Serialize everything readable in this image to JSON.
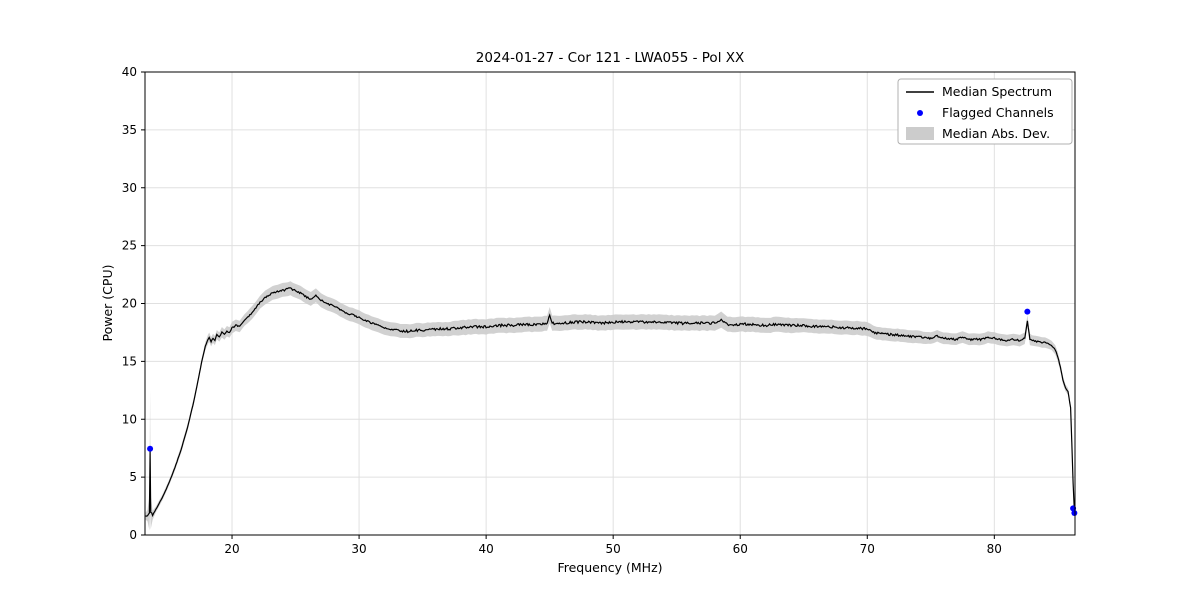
{
  "page": {
    "background": "#ffffff"
  },
  "chart_data": {
    "type": "line",
    "title": "2024-01-27 - Cor 121 - LWA055 - Pol XX",
    "xlabel": "Frequency (MHz)",
    "ylabel": "Power (CPU)",
    "xlim": [
      13.15,
      86.35
    ],
    "ylim": [
      0,
      40
    ],
    "xticks": [
      20,
      30,
      40,
      50,
      60,
      70,
      80
    ],
    "yticks": [
      0,
      5,
      10,
      15,
      20,
      25,
      30,
      35,
      40
    ],
    "grid": true,
    "colors": {
      "median_line": "#000000",
      "flagged_marker": "#0000ff",
      "mad_band": "#cccccc",
      "grid_line": "#e0e0e0",
      "legend_border": "#b0b0b0"
    },
    "legend": {
      "position": "upper right",
      "entries": [
        {
          "label": "Median Spectrum",
          "type": "line",
          "color": "#000000"
        },
        {
          "label": "Flagged Channels",
          "type": "marker",
          "color": "#0000ff"
        },
        {
          "label": "Median Abs. Dev.",
          "type": "patch",
          "color": "#cccccc"
        }
      ]
    },
    "series": [
      {
        "name": "Median Spectrum",
        "note": "points are [frequency_MHz, median_power_CPU, median_abs_dev]",
        "points": [
          [
            13.2,
            1.6,
            0.3
          ],
          [
            13.35,
            1.7,
            0.5
          ],
          [
            13.5,
            1.9,
            1.5
          ],
          [
            13.55,
            7.3,
            5.2
          ],
          [
            13.6,
            2.0,
            1.5
          ],
          [
            13.75,
            1.7,
            0.4
          ],
          [
            14.0,
            2.2,
            0.25
          ],
          [
            14.5,
            3.2,
            0.25
          ],
          [
            15.0,
            4.4,
            0.25
          ],
          [
            15.5,
            5.8,
            0.25
          ],
          [
            16.0,
            7.4,
            0.3
          ],
          [
            16.5,
            9.3,
            0.3
          ],
          [
            17.0,
            11.6,
            0.3
          ],
          [
            17.3,
            13.2,
            0.3
          ],
          [
            17.6,
            14.9,
            0.3
          ],
          [
            17.9,
            16.3,
            0.35
          ],
          [
            18.1,
            16.9,
            0.4
          ],
          [
            18.2,
            17.1,
            0.4
          ],
          [
            18.35,
            16.7,
            0.4
          ],
          [
            18.5,
            17.0,
            0.4
          ],
          [
            18.65,
            16.8,
            0.4
          ],
          [
            18.8,
            17.3,
            0.4
          ],
          [
            19.0,
            17.1,
            0.4
          ],
          [
            19.2,
            17.5,
            0.45
          ],
          [
            19.4,
            17.3,
            0.45
          ],
          [
            19.6,
            17.6,
            0.45
          ],
          [
            19.8,
            17.5,
            0.45
          ],
          [
            20.0,
            17.9,
            0.5
          ],
          [
            20.3,
            18.1,
            0.5
          ],
          [
            20.6,
            18.0,
            0.5
          ],
          [
            21.0,
            18.6,
            0.5
          ],
          [
            21.4,
            19.0,
            0.55
          ],
          [
            21.8,
            19.5,
            0.55
          ],
          [
            22.2,
            20.1,
            0.55
          ],
          [
            22.6,
            20.5,
            0.6
          ],
          [
            23.0,
            20.8,
            0.6
          ],
          [
            23.4,
            21.0,
            0.6
          ],
          [
            23.8,
            21.1,
            0.6
          ],
          [
            24.2,
            21.2,
            0.6
          ],
          [
            24.6,
            21.3,
            0.6
          ],
          [
            25.0,
            21.1,
            0.6
          ],
          [
            25.4,
            20.9,
            0.6
          ],
          [
            25.8,
            20.6,
            0.6
          ],
          [
            26.2,
            20.4,
            0.6
          ],
          [
            26.6,
            20.7,
            0.6
          ],
          [
            27.0,
            20.3,
            0.6
          ],
          [
            27.5,
            20.0,
            0.6
          ],
          [
            28.0,
            19.8,
            0.6
          ],
          [
            28.5,
            19.5,
            0.6
          ],
          [
            29.0,
            19.2,
            0.6
          ],
          [
            29.5,
            19.0,
            0.6
          ],
          [
            30.0,
            18.8,
            0.6
          ],
          [
            30.5,
            18.5,
            0.6
          ],
          [
            31.0,
            18.3,
            0.6
          ],
          [
            31.5,
            18.1,
            0.6
          ],
          [
            32.0,
            17.9,
            0.6
          ],
          [
            32.5,
            17.8,
            0.6
          ],
          [
            33.0,
            17.7,
            0.6
          ],
          [
            33.5,
            17.6,
            0.6
          ],
          [
            34.0,
            17.6,
            0.6
          ],
          [
            34.5,
            17.7,
            0.6
          ],
          [
            35.0,
            17.7,
            0.6
          ],
          [
            36.0,
            17.8,
            0.6
          ],
          [
            37.0,
            17.8,
            0.6
          ],
          [
            38.0,
            17.9,
            0.65
          ],
          [
            39.0,
            18.0,
            0.65
          ],
          [
            40.0,
            18.0,
            0.65
          ],
          [
            41.0,
            18.1,
            0.65
          ],
          [
            42.0,
            18.1,
            0.65
          ],
          [
            43.0,
            18.2,
            0.65
          ],
          [
            44.0,
            18.2,
            0.65
          ],
          [
            44.8,
            18.3,
            0.65
          ],
          [
            45.0,
            19.0,
            0.7
          ],
          [
            45.2,
            18.3,
            0.65
          ],
          [
            46.0,
            18.3,
            0.65
          ],
          [
            47.0,
            18.4,
            0.65
          ],
          [
            48.0,
            18.4,
            0.65
          ],
          [
            49.0,
            18.3,
            0.65
          ],
          [
            50.0,
            18.4,
            0.65
          ],
          [
            51.0,
            18.4,
            0.65
          ],
          [
            52.0,
            18.4,
            0.65
          ],
          [
            53.0,
            18.4,
            0.65
          ],
          [
            54.0,
            18.4,
            0.65
          ],
          [
            55.0,
            18.3,
            0.65
          ],
          [
            56.0,
            18.3,
            0.65
          ],
          [
            57.0,
            18.3,
            0.65
          ],
          [
            58.0,
            18.3,
            0.65
          ],
          [
            58.5,
            18.6,
            0.7
          ],
          [
            59.0,
            18.2,
            0.65
          ],
          [
            60.0,
            18.2,
            0.65
          ],
          [
            61.0,
            18.2,
            0.65
          ],
          [
            62.0,
            18.1,
            0.65
          ],
          [
            63.0,
            18.2,
            0.65
          ],
          [
            64.0,
            18.1,
            0.65
          ],
          [
            65.0,
            18.1,
            0.6
          ],
          [
            66.0,
            18.0,
            0.6
          ],
          [
            67.0,
            18.0,
            0.6
          ],
          [
            68.0,
            17.9,
            0.6
          ],
          [
            69.0,
            17.9,
            0.6
          ],
          [
            70.0,
            17.8,
            0.6
          ],
          [
            70.5,
            17.5,
            0.55
          ],
          [
            71.0,
            17.4,
            0.55
          ],
          [
            72.0,
            17.3,
            0.55
          ],
          [
            73.0,
            17.2,
            0.55
          ],
          [
            74.0,
            17.1,
            0.55
          ],
          [
            75.0,
            17.0,
            0.5
          ],
          [
            75.5,
            17.2,
            0.5
          ],
          [
            76.0,
            17.0,
            0.5
          ],
          [
            77.0,
            16.9,
            0.5
          ],
          [
            77.5,
            17.1,
            0.5
          ],
          [
            78.0,
            16.9,
            0.5
          ],
          [
            79.0,
            16.9,
            0.5
          ],
          [
            79.5,
            17.1,
            0.5
          ],
          [
            80.0,
            17.0,
            0.5
          ],
          [
            80.5,
            16.9,
            0.5
          ],
          [
            81.0,
            16.8,
            0.5
          ],
          [
            81.5,
            16.9,
            0.5
          ],
          [
            82.0,
            16.8,
            0.5
          ],
          [
            82.4,
            17.0,
            0.5
          ],
          [
            82.6,
            18.5,
            0.5
          ],
          [
            82.8,
            16.9,
            0.5
          ],
          [
            83.0,
            16.8,
            0.45
          ],
          [
            83.5,
            16.7,
            0.45
          ],
          [
            84.0,
            16.6,
            0.45
          ],
          [
            84.5,
            16.4,
            0.4
          ],
          [
            84.8,
            16.0,
            0.4
          ],
          [
            85.0,
            15.4,
            0.4
          ],
          [
            85.2,
            14.5,
            0.35
          ],
          [
            85.4,
            13.4,
            0.35
          ],
          [
            85.6,
            12.7,
            0.3
          ],
          [
            85.8,
            12.4,
            0.3
          ],
          [
            86.0,
            11.0,
            0.3
          ],
          [
            86.1,
            8.0,
            0.3
          ],
          [
            86.2,
            4.5,
            0.3
          ],
          [
            86.3,
            2.0,
            0.3
          ]
        ]
      }
    ],
    "flagged_channels": [
      [
        13.55,
        7.45
      ],
      [
        82.6,
        19.3
      ],
      [
        86.2,
        2.3
      ],
      [
        86.3,
        1.9
      ]
    ]
  }
}
